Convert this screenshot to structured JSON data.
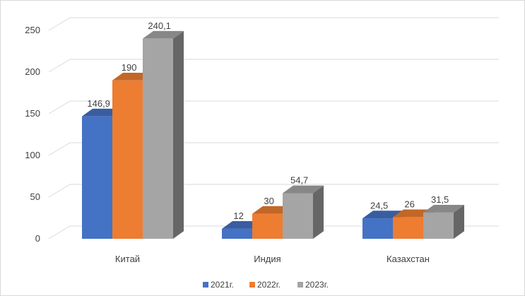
{
  "chart_data": {
    "type": "bar",
    "categories": [
      "Китай",
      "Индия",
      "Казахстан"
    ],
    "series": [
      {
        "name": "2021г.",
        "values": [
          146.9,
          12,
          24.5
        ],
        "labels": [
          "146,9",
          "12",
          "24,5"
        ],
        "color": "#4472C4"
      },
      {
        "name": "2022г.",
        "values": [
          190,
          30,
          26
        ],
        "labels": [
          "190",
          "30",
          "26"
        ],
        "color": "#ED7D31"
      },
      {
        "name": "2023г.",
        "values": [
          240.1,
          54.7,
          31.5
        ],
        "labels": [
          "240,1",
          "54,7",
          "31,5"
        ],
        "color": "#A5A5A5"
      }
    ],
    "ylim": [
      0,
      250
    ],
    "yticks": [
      0,
      50,
      100,
      150,
      200,
      250
    ],
    "grid": true,
    "legend_position": "bottom",
    "three_d": true
  }
}
